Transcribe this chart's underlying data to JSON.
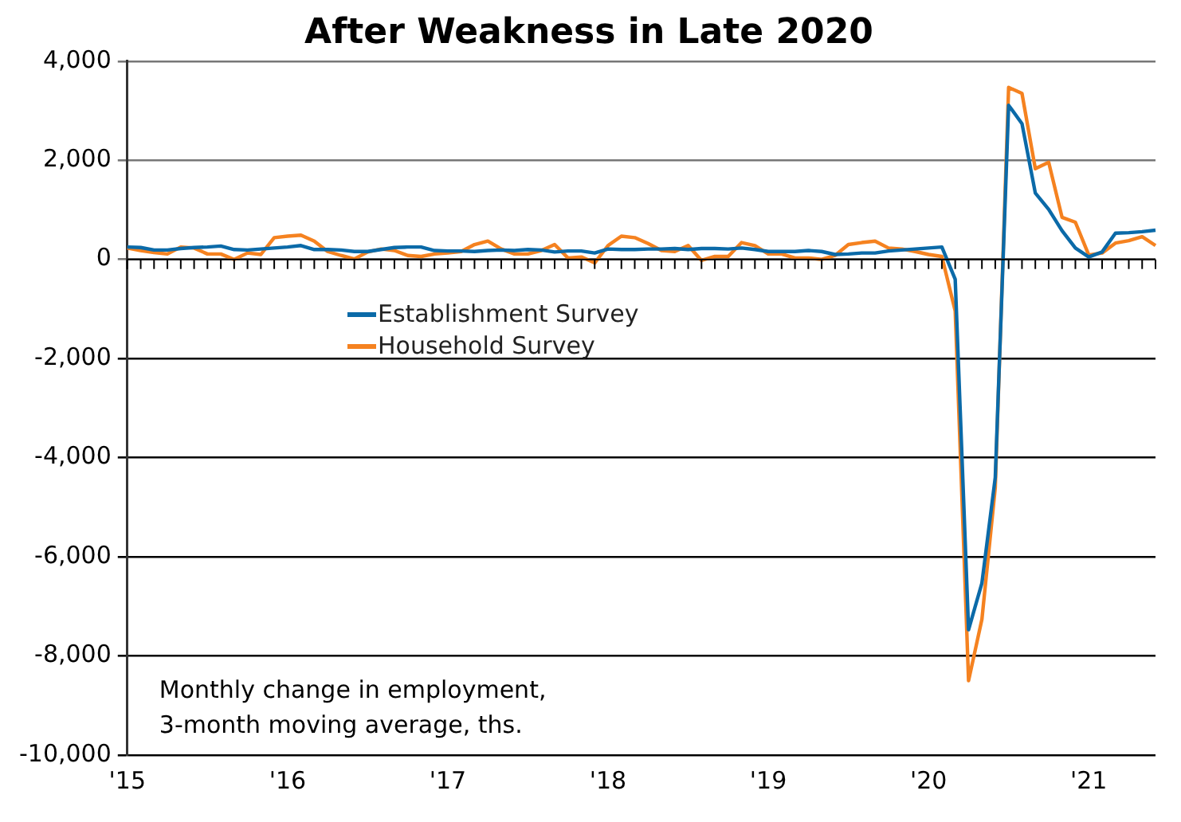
{
  "chart_data": {
    "type": "line",
    "title": "After Weakness in Late 2020",
    "categories": [
      "'15",
      null,
      null,
      null,
      null,
      null,
      null,
      null,
      null,
      null,
      null,
      null,
      "'16",
      null,
      null,
      null,
      null,
      null,
      null,
      null,
      null,
      null,
      null,
      null,
      "'17",
      null,
      null,
      null,
      null,
      null,
      null,
      null,
      null,
      null,
      null,
      null,
      "'18",
      null,
      null,
      null,
      null,
      null,
      null,
      null,
      null,
      null,
      null,
      null,
      "'19",
      null,
      null,
      null,
      null,
      null,
      null,
      null,
      null,
      null,
      null,
      null,
      "'20",
      null,
      null,
      null,
      null,
      null,
      null,
      null,
      null,
      null,
      null,
      null,
      "'21",
      null,
      null,
      null,
      null,
      null
    ],
    "series": [
      {
        "name": "Establishment Survey",
        "color": "#0b6aa8",
        "values": [
          250,
          240,
          190,
          190,
          220,
          240,
          250,
          270,
          200,
          190,
          210,
          230,
          250,
          280,
          200,
          200,
          190,
          160,
          160,
          200,
          240,
          250,
          250,
          180,
          170,
          170,
          160,
          180,
          190,
          180,
          200,
          190,
          150,
          170,
          170,
          130,
          210,
          200,
          200,
          210,
          210,
          220,
          200,
          220,
          220,
          210,
          230,
          200,
          160,
          160,
          160,
          180,
          160,
          100,
          110,
          130,
          130,
          170,
          190,
          210,
          230,
          250,
          -400,
          -7470,
          -6530,
          -4400,
          3110,
          2740,
          1340,
          1010,
          580,
          230,
          50,
          150,
          530,
          540,
          560,
          590
        ]
      },
      {
        "name": "Household Survey",
        "color": "#f58220",
        "values": [
          230,
          180,
          140,
          110,
          250,
          230,
          110,
          110,
          0,
          130,
          100,
          440,
          470,
          490,
          370,
          160,
          80,
          10,
          150,
          210,
          180,
          80,
          60,
          110,
          130,
          160,
          300,
          370,
          210,
          110,
          110,
          180,
          300,
          30,
          50,
          -70,
          280,
          470,
          440,
          320,
          180,
          160,
          280,
          -20,
          60,
          60,
          340,
          280,
          110,
          110,
          30,
          30,
          0,
          80,
          300,
          340,
          370,
          230,
          210,
          160,
          100,
          60,
          -1040,
          -8500,
          -7260,
          -4600,
          3470,
          3350,
          1830,
          1960,
          850,
          750,
          90,
          130,
          330,
          380,
          460,
          280
        ]
      }
    ],
    "ylim": [
      -10000,
      4000
    ],
    "yticks": [
      {
        "value": -10000,
        "label": "-10,000"
      },
      {
        "value": -8000,
        "label": "-8,000"
      },
      {
        "value": -6000,
        "label": "-6,000"
      },
      {
        "value": -4000,
        "label": "-4,000"
      },
      {
        "value": -2000,
        "label": "-2,000"
      },
      0,
      {
        "value": 2000,
        "label": "2,000"
      },
      {
        "value": 4000,
        "label": "4,000"
      }
    ],
    "grid": "y",
    "legend": "top left",
    "marker": "none",
    "line_style": "solid",
    "annotations": [
      "Monthly change in employment,\n3-month moving average, ths."
    ]
  }
}
